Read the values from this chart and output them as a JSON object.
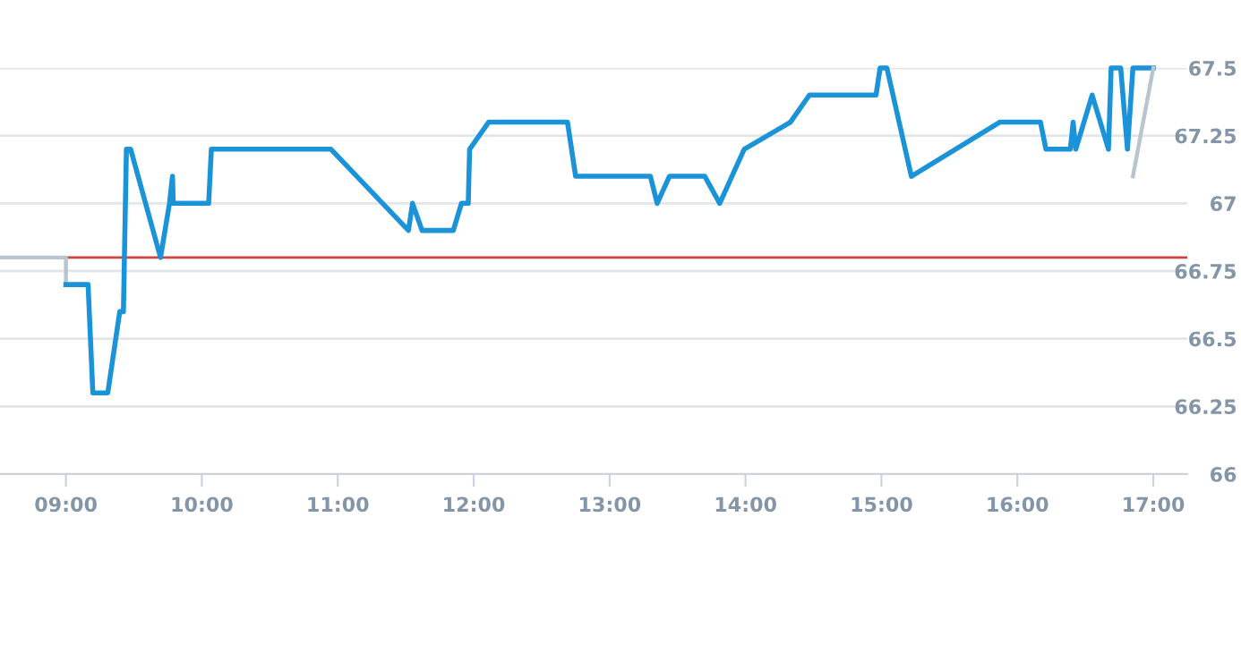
{
  "chart_data": {
    "type": "line",
    "series": [
      {
        "color": "#b9c4cc",
        "x": [
          8.515,
          9.0,
          9.0
        ],
        "values": [
          66.8,
          66.8,
          66.7
        ]
      },
      {
        "color": "#1a93d9",
        "x": [
          9.0,
          9.163,
          9.198,
          9.308,
          9.396,
          9.423,
          9.445,
          9.476,
          9.696,
          9.762,
          9.784,
          9.79,
          10.05,
          10.07,
          10.95,
          11.52,
          11.55,
          11.62,
          11.85,
          11.91,
          11.96,
          11.97,
          12.11,
          12.69,
          12.75,
          13.3,
          13.35,
          13.44,
          13.7,
          13.81,
          13.99,
          14.33,
          14.47,
          14.96,
          14.99,
          15.04,
          15.22,
          15.87,
          16.17,
          16.21,
          16.39,
          16.41,
          16.43,
          16.55,
          16.67,
          16.69,
          16.76,
          16.81,
          16.85,
          17.0
        ],
        "values": [
          66.7,
          66.7,
          66.3,
          66.3,
          66.6,
          66.6,
          67.2,
          67.2,
          66.8,
          67.0,
          67.1,
          67.0,
          67.0,
          67.2,
          67.2,
          66.9,
          67.0,
          66.9,
          66.9,
          67.0,
          67.0,
          67.2,
          67.3,
          67.3,
          67.1,
          67.1,
          67.0,
          67.1,
          67.1,
          67.0,
          67.2,
          67.3,
          67.4,
          67.4,
          67.5,
          67.5,
          67.1,
          67.3,
          67.3,
          67.2,
          67.2,
          67.3,
          67.2,
          67.4,
          67.2,
          67.5,
          67.5,
          67.2,
          67.5,
          67.5
        ]
      },
      {
        "color": "#b9c4cc",
        "x": [
          16.85,
          17.0
        ],
        "values": [
          67.1,
          67.5
        ]
      }
    ],
    "xlim": [
      8.515,
      17.25
    ],
    "xticks": [
      {
        "value": 9,
        "label": "09:00"
      },
      {
        "value": 10,
        "label": "10:00"
      },
      {
        "value": 11,
        "label": "11:00"
      },
      {
        "value": 12,
        "label": "12:00"
      },
      {
        "value": 13,
        "label": "13:00"
      },
      {
        "value": 14,
        "label": "14:00"
      },
      {
        "value": 15,
        "label": "15:00"
      },
      {
        "value": 16,
        "label": "16:00"
      },
      {
        "value": 17,
        "label": "17:00"
      }
    ],
    "ylim": [
      66,
      67.5
    ],
    "yticks": [
      66,
      66.25,
      66.5,
      66.75,
      67,
      67.25,
      67.5
    ],
    "grid": "y",
    "ref_lines": [
      {
        "axis": "y",
        "value": 66.8,
        "color": "#d0453b"
      }
    ]
  }
}
